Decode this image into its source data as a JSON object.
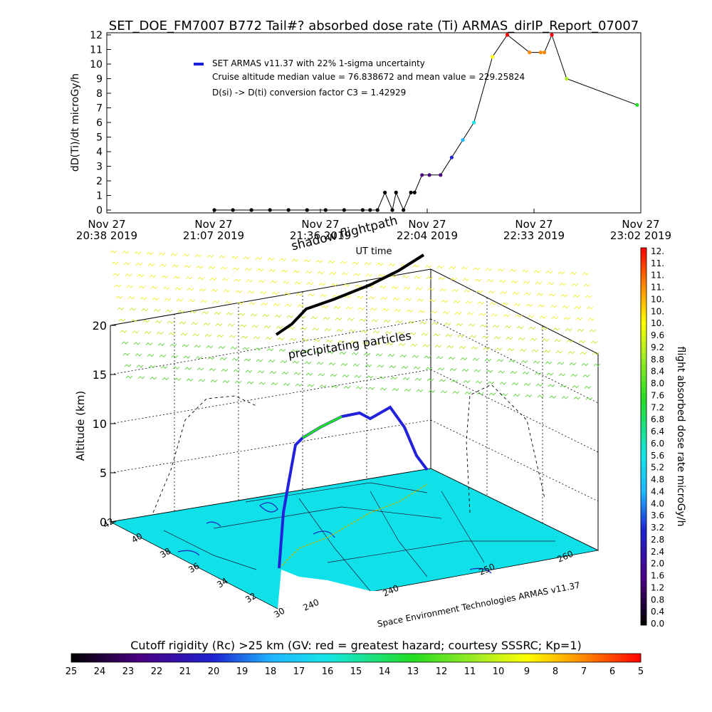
{
  "chart_data": [
    {
      "type": "line",
      "title": "SET_DOE_FM7007  B772 Tail#? absorbed dose rate (Ti) ARMAS_dirIP_Report_07007",
      "ylabel": "dD(Ti)/dt microGy/h",
      "xlabel": "UT time",
      "ylim": [
        0,
        12
      ],
      "yticks": [
        "0",
        "1",
        "2",
        "3",
        "4",
        "5",
        "6",
        "7",
        "8",
        "9",
        "10",
        "11",
        "12"
      ],
      "xticks": [
        {
          "line1": "Nov 27",
          "line2": "20:38 2019"
        },
        {
          "line1": "Nov 27",
          "line2": "21:07 2019"
        },
        {
          "line1": "Nov 27",
          "line2": "21:36 2019"
        },
        {
          "line1": "Nov 27",
          "line2": "22:04 2019"
        },
        {
          "line1": "Nov 27",
          "line2": "22:33 2019"
        },
        {
          "line1": "Nov 27",
          "line2": "23:02 2019"
        }
      ],
      "legend": {
        "series_label": "SET ARMAS v11.37 with 22% 1-sigma uncertainty",
        "note1": "Cruise altitude median value = 76.838672 and mean value = 229.25824",
        "note2": "D(si) -> D(ti) conversion factor C3 = 1.42929"
      },
      "series": [
        {
          "name": "SET ARMAS v11.37 with 22% 1-sigma uncertainty",
          "x_minutes_after_2038": [
            29,
            34,
            39,
            44,
            49,
            54,
            59,
            64,
            69,
            71,
            73,
            75,
            77,
            78,
            80,
            82,
            83,
            85,
            87,
            90,
            93,
            96,
            99,
            104,
            108,
            114,
            117,
            118,
            120,
            124,
            143
          ],
          "values": [
            0,
            0,
            0,
            0,
            0,
            0,
            0,
            0,
            0,
            0,
            0,
            1.2,
            0,
            1.2,
            0,
            1.2,
            1.2,
            2.4,
            2.4,
            2.4,
            3.6,
            4.8,
            6.0,
            10.5,
            12.0,
            10.8,
            10.8,
            10.8,
            12.0,
            9.0,
            7.2
          ]
        }
      ]
    },
    {
      "type": "scatter",
      "zlabel": "Altitude (km)",
      "zticks": [
        "0",
        "5",
        "10",
        "15",
        "20"
      ],
      "lat_ticks": [
        "42",
        "40",
        "38",
        "36",
        "34",
        "32",
        "30"
      ],
      "lon_ticks": [
        "240",
        "240",
        "250",
        "260"
      ],
      "annotations": {
        "top": "shadow flightpath",
        "middle": "precipitating particles",
        "credit": "Space Environment Technologies ARMAS v11.37"
      }
    }
  ],
  "colorbar_right": {
    "label": "flight absorbed dose rate microGy/h",
    "ticks": [
      "0.0",
      "0.4",
      "0.8",
      "1.2",
      "1.6",
      "2.0",
      "2.4",
      "2.8",
      "3.2",
      "3.6",
      "4.0",
      "4.4",
      "4.8",
      "5.2",
      "5.6",
      "6.0",
      "6.4",
      "6.8",
      "7.2",
      "7.6",
      "8.0",
      "8.4",
      "8.8",
      "9.2",
      "9.6",
      "10.",
      "10.",
      "10.",
      "11.",
      "11.",
      "11.",
      "12."
    ]
  },
  "colorbar_bottom": {
    "label": "Cutoff rigidity (Rc) >25 km (GV: red = greatest hazard; courtesy SSSRC; Kp=1)",
    "ticks": [
      "25",
      "24",
      "23",
      "22",
      "21",
      "20",
      "19",
      "18",
      "17",
      "16",
      "15",
      "14",
      "13",
      "12",
      "11",
      "10",
      "9",
      "8",
      "7",
      "6",
      "5"
    ]
  }
}
